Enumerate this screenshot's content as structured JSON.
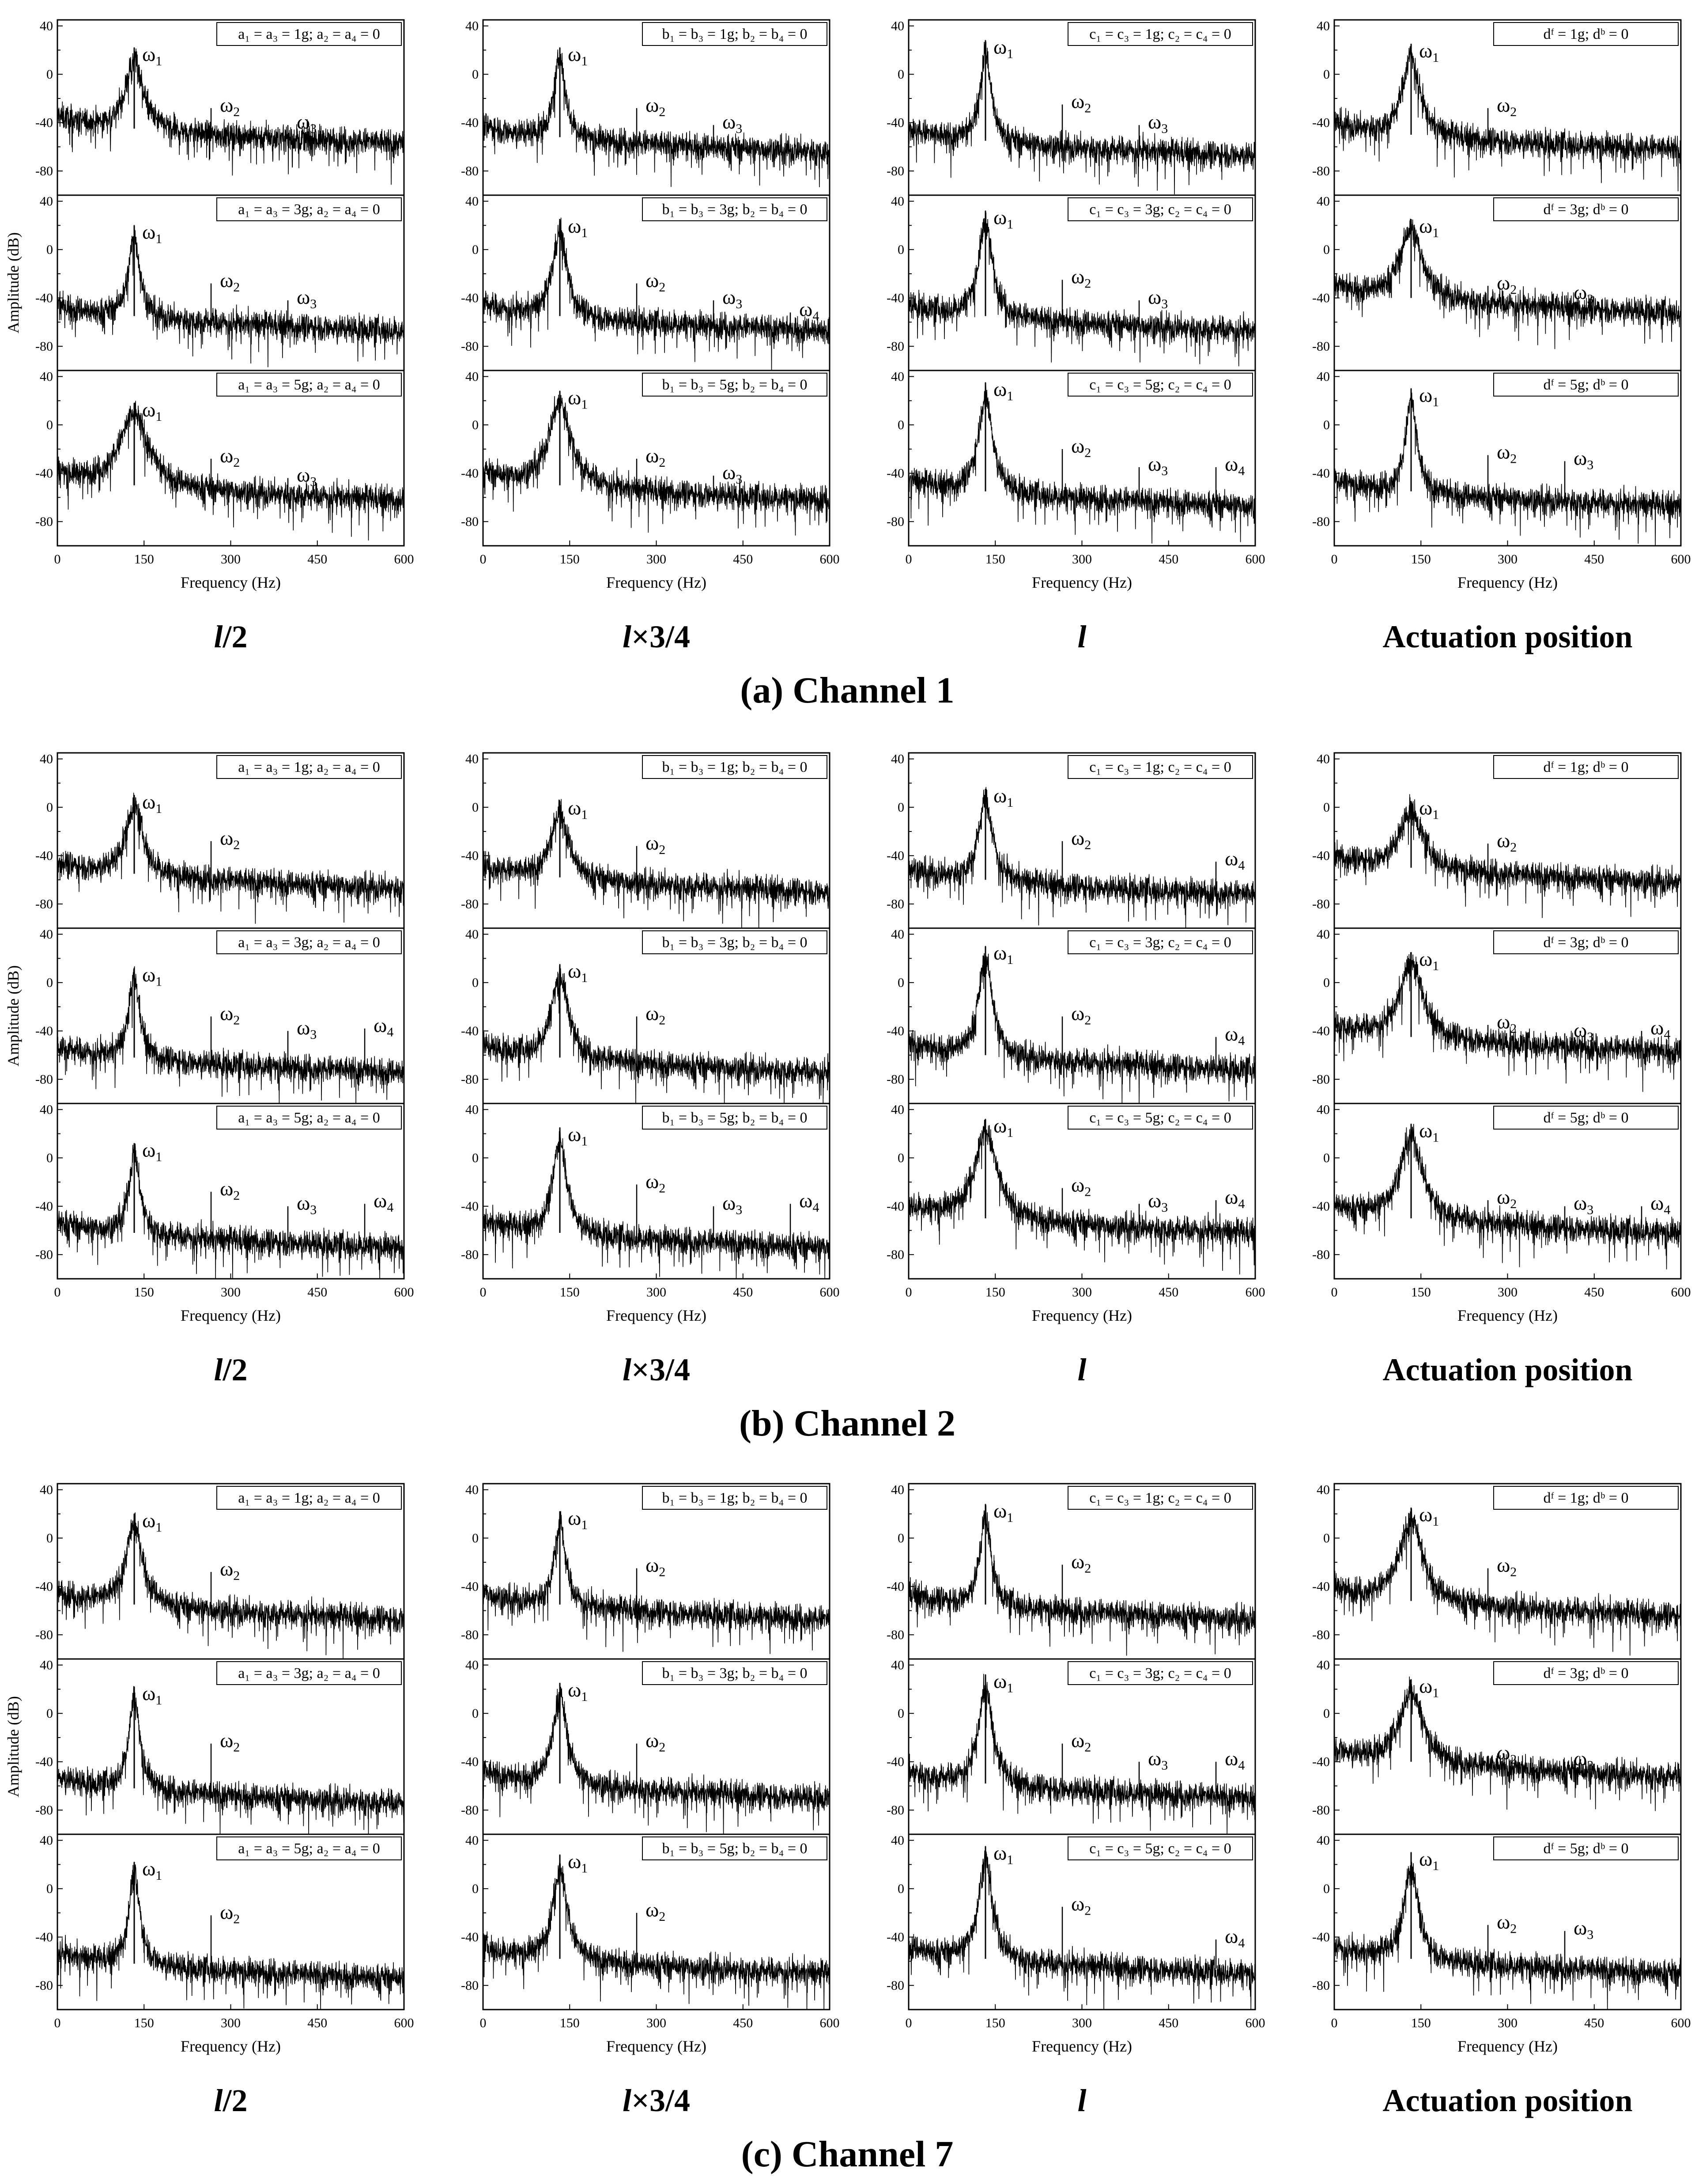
{
  "figure": {
    "channels": [
      "(a) Channel 1",
      "(b) Channel 2",
      "(c) Channel 7"
    ],
    "column_labels": [
      "l/2",
      "l×3/4",
      "l",
      "Actuation position"
    ]
  },
  "chart_data": {
    "type": "line",
    "description_axes": {
      "xlabel": "Frequency (Hz)",
      "ylabel": "Amplitude (dB)",
      "xlim": [
        0,
        600
      ],
      "xticks": [
        0,
        150,
        300,
        450,
        600
      ],
      "ylim": [
        -100,
        45
      ],
      "yticks": [
        -80,
        -40,
        0,
        40
      ],
      "grid": false
    },
    "columns": [
      {
        "label": "l/2",
        "legends": [
          "a₁ = a₃ = 1g; a₂ = a₄ = 0",
          "a₁ = a₃ = 3g; a₂ = a₄ = 0",
          "a₁ = a₃ = 5g; a₂ = a₄ = 0"
        ]
      },
      {
        "label": "l×3/4",
        "legends": [
          "b₁ = b₃ = 1g; b₂ = b₄ = 0",
          "b₁ = b₃ = 3g; b₂ = b₄ = 0",
          "b₁ = b₃ = 5g; b₂ = b₄ = 0"
        ]
      },
      {
        "label": "l",
        "legends": [
          "c₁ = c₃ = 1g; c₂ = c₄ = 0",
          "c₁ = c₃ = 3g; c₂ = c₄ = 0",
          "c₁ = c₃ = 5g; c₂ = c₄ = 0"
        ]
      },
      {
        "label": "Actuation position",
        "legends": [
          "dᶠ = 1g; dᵇ = 0",
          "dᶠ = 3g; dᵇ = 0",
          "dᶠ = 5g; dᵇ = 0"
        ]
      }
    ],
    "harmonics_hz": [
      133,
      266,
      399,
      532
    ],
    "panels": [
      [
        [
          {
            "floor": -45,
            "peak": 22,
            "w": 3,
            "h": [
              [
                -28,
                "ω2"
              ],
              [
                -42,
                "ω3"
              ]
            ]
          },
          {
            "floor": -55,
            "peak": 20,
            "w": 2,
            "h": [
              [
                -28,
                "ω2"
              ],
              [
                -42,
                "ω3"
              ]
            ]
          },
          {
            "floor": -50,
            "peak": 18,
            "w": 5,
            "h": [
              [
                -28,
                "ω2"
              ],
              [
                -44,
                "ω3"
              ]
            ]
          }
        ],
        [
          {
            "floor": -52,
            "peak": 22,
            "w": 2,
            "h": [
              [
                -28,
                "ω2"
              ],
              [
                -42,
                "ω3"
              ]
            ]
          },
          {
            "floor": -55,
            "peak": 25,
            "w": 2.5,
            "h": [
              [
                -28,
                "ω2"
              ],
              [
                -42,
                "ω3"
              ],
              [
                -52,
                "ω4"
              ]
            ]
          },
          {
            "floor": -50,
            "peak": 28,
            "w": 4,
            "h": [
              [
                -28,
                "ω2"
              ],
              [
                -42,
                "ω3"
              ]
            ]
          }
        ],
        [
          {
            "floor": -55,
            "peak": 28,
            "w": 2,
            "h": [
              [
                -25,
                "ω2"
              ],
              [
                -42,
                "ω3"
              ]
            ]
          },
          {
            "floor": -55,
            "peak": 32,
            "w": 2.5,
            "h": [
              [
                -25,
                "ω2"
              ],
              [
                -42,
                "ω3"
              ]
            ]
          },
          {
            "floor": -55,
            "peak": 35,
            "w": 2.5,
            "h": [
              [
                -20,
                "ω2"
              ],
              [
                -35,
                "ω3"
              ],
              [
                -35,
                "ω4"
              ]
            ]
          }
        ],
        [
          {
            "floor": -50,
            "peak": 25,
            "w": 3,
            "h": [
              [
                -28,
                "ω2"
              ]
            ]
          },
          {
            "floor": -40,
            "peak": 25,
            "w": 4,
            "h": [
              [
                -30,
                "ω2"
              ],
              [
                -38,
                "ω3"
              ]
            ]
          },
          {
            "floor": -55,
            "peak": 30,
            "w": 2,
            "h": [
              [
                -25,
                "ω2"
              ],
              [
                -30,
                "ω3"
              ]
            ]
          }
        ]
      ],
      [
        [
          {
            "floor": -55,
            "peak": 10,
            "w": 3,
            "h": [
              [
                -28,
                "ω2"
              ]
            ]
          },
          {
            "floor": -62,
            "peak": 12,
            "w": 2,
            "h": [
              [
                -28,
                "ω2"
              ],
              [
                -40,
                "ω3"
              ],
              [
                -38,
                "ω4"
              ]
            ]
          },
          {
            "floor": -62,
            "peak": 12,
            "w": 2,
            "h": [
              [
                -28,
                "ω2"
              ],
              [
                -40,
                "ω3"
              ],
              [
                -38,
                "ω4"
              ]
            ]
          }
        ],
        [
          {
            "floor": -58,
            "peak": 5,
            "w": 3,
            "h": [
              [
                -32,
                "ω2"
              ]
            ]
          },
          {
            "floor": -62,
            "peak": 15,
            "w": 3,
            "h": [
              [
                -28,
                "ω2"
              ]
            ]
          },
          {
            "floor": -62,
            "peak": 25,
            "w": 2.5,
            "h": [
              [
                -22,
                "ω2"
              ],
              [
                -40,
                "ω3"
              ],
              [
                -38,
                "ω4"
              ]
            ]
          }
        ],
        [
          {
            "floor": -60,
            "peak": 15,
            "w": 2.5,
            "h": [
              [
                -28,
                "ω2"
              ],
              [
                -45,
                "ω4"
              ]
            ]
          },
          {
            "floor": -60,
            "peak": 30,
            "w": 2.5,
            "h": [
              [
                -28,
                "ω2"
              ],
              [
                -45,
                "ω4"
              ]
            ]
          },
          {
            "floor": -50,
            "peak": 32,
            "w": 4,
            "h": [
              [
                -25,
                "ω2"
              ],
              [
                -38,
                "ω3"
              ],
              [
                -35,
                "ω4"
              ]
            ]
          }
        ],
        [
          {
            "floor": -50,
            "peak": 5,
            "w": 4,
            "h": [
              [
                -30,
                "ω2"
              ]
            ]
          },
          {
            "floor": -45,
            "peak": 25,
            "w": 4,
            "h": [
              [
                -35,
                "ω2"
              ],
              [
                -42,
                "ω3"
              ],
              [
                -40,
                "ω4"
              ]
            ]
          },
          {
            "floor": -50,
            "peak": 28,
            "w": 4,
            "h": [
              [
                -35,
                "ω2"
              ],
              [
                -40,
                "ω3"
              ],
              [
                -40,
                "ω4"
              ]
            ]
          }
        ]
      ],
      [
        [
          {
            "floor": -55,
            "peak": 20,
            "w": 3,
            "h": [
              [
                -28,
                "ω2"
              ]
            ]
          },
          {
            "floor": -62,
            "peak": 22,
            "w": 2,
            "h": [
              [
                -25,
                "ω2"
              ]
            ]
          },
          {
            "floor": -62,
            "peak": 22,
            "w": 2,
            "h": [
              [
                -22,
                "ω2"
              ]
            ]
          }
        ],
        [
          {
            "floor": -55,
            "peak": 22,
            "w": 2,
            "h": [
              [
                -25,
                "ω2"
              ]
            ]
          },
          {
            "floor": -58,
            "peak": 25,
            "w": 2.5,
            "h": [
              [
                -25,
                "ω2"
              ]
            ]
          },
          {
            "floor": -58,
            "peak": 28,
            "w": 2.5,
            "h": [
              [
                -20,
                "ω2"
              ]
            ]
          }
        ],
        [
          {
            "floor": -55,
            "peak": 28,
            "w": 2,
            "h": [
              [
                -22,
                "ω2"
              ]
            ]
          },
          {
            "floor": -58,
            "peak": 32,
            "w": 2.5,
            "h": [
              [
                -25,
                "ω2"
              ],
              [
                -40,
                "ω3"
              ],
              [
                -40,
                "ω4"
              ]
            ]
          },
          {
            "floor": -58,
            "peak": 35,
            "w": 2.5,
            "h": [
              [
                -15,
                "ω2"
              ],
              [
                -42,
                "ω4"
              ]
            ]
          }
        ],
        [
          {
            "floor": -52,
            "peak": 25,
            "w": 4,
            "h": [
              [
                -25,
                "ω2"
              ]
            ]
          },
          {
            "floor": -40,
            "peak": 28,
            "w": 4,
            "h": [
              [
                -35,
                "ω2"
              ],
              [
                -40,
                "ω3"
              ]
            ]
          },
          {
            "floor": -58,
            "peak": 30,
            "w": 2.5,
            "h": [
              [
                -30,
                "ω2"
              ],
              [
                -35,
                "ω3"
              ]
            ]
          }
        ]
      ]
    ]
  }
}
